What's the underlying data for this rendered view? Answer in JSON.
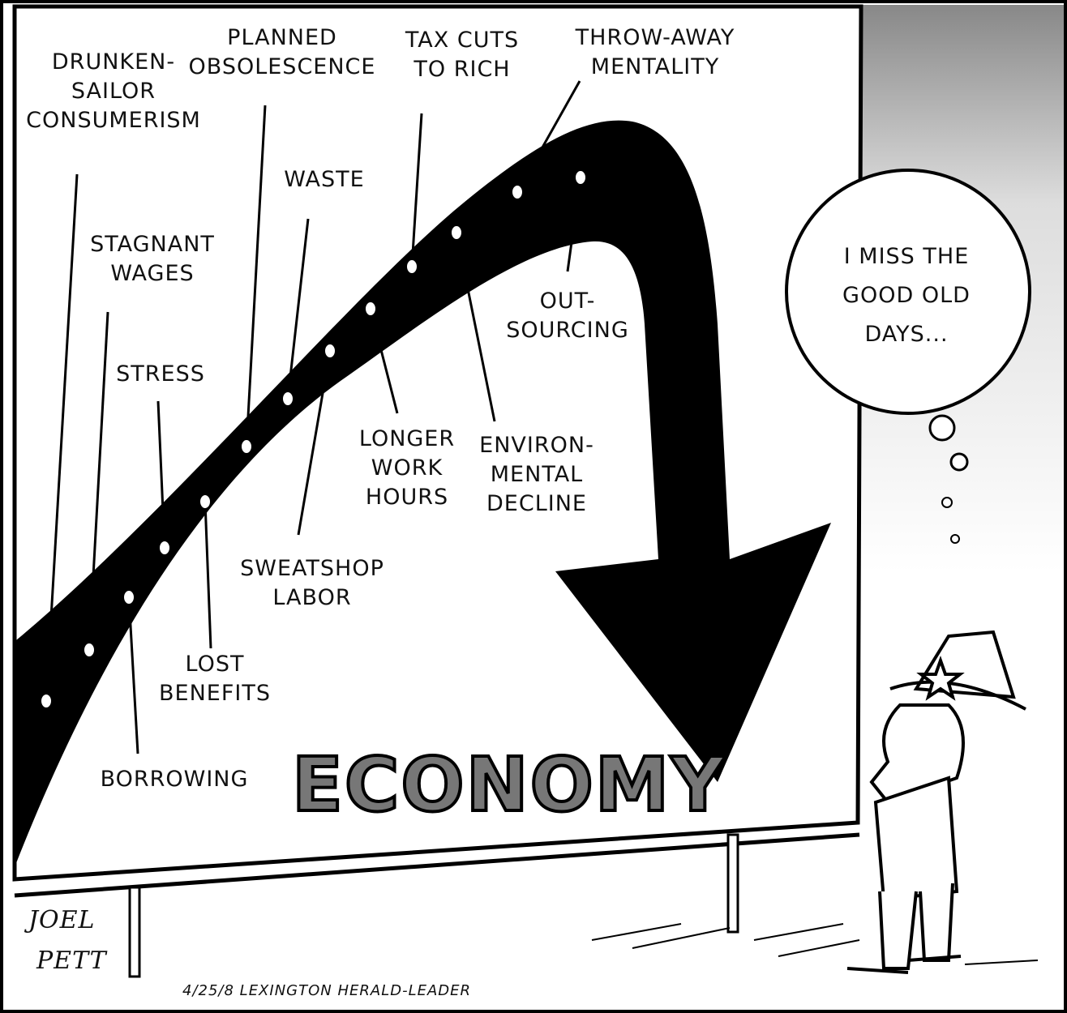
{
  "labels": [
    {
      "lines": [
        "DRUNKEN-",
        "SAILOR",
        "CONSUMERISM"
      ]
    },
    {
      "lines": [
        "STAGNANT",
        "WAGES"
      ]
    },
    {
      "lines": [
        "STRESS"
      ]
    },
    {
      "lines": [
        "PLANNED",
        "OBSOLESCENCE"
      ]
    },
    {
      "lines": [
        "WASTE"
      ]
    },
    {
      "lines": [
        "TAX CUTS",
        "TO RICH"
      ]
    },
    {
      "lines": [
        "THROW-AWAY",
        "MENTALITY"
      ]
    },
    {
      "lines": [
        "OUT-",
        "SOURCING"
      ]
    },
    {
      "lines": [
        "LONGER",
        "WORK",
        "HOURS"
      ]
    },
    {
      "lines": [
        "ENVIRON-",
        "MENTAL",
        "DECLINE"
      ]
    },
    {
      "lines": [
        "SWEATSHOP",
        "LABOR"
      ]
    },
    {
      "lines": [
        "LOST",
        "BENEFITS"
      ]
    },
    {
      "lines": [
        "BORROWING"
      ]
    }
  ],
  "board_title": "ECONOMY",
  "thought": [
    "I MISS THE",
    "GOOD OLD",
    "DAYS..."
  ],
  "signature": [
    "JOEL",
    "PETT"
  ],
  "credit": "4/25/8 LEXINGTON HERALD-LEADER"
}
